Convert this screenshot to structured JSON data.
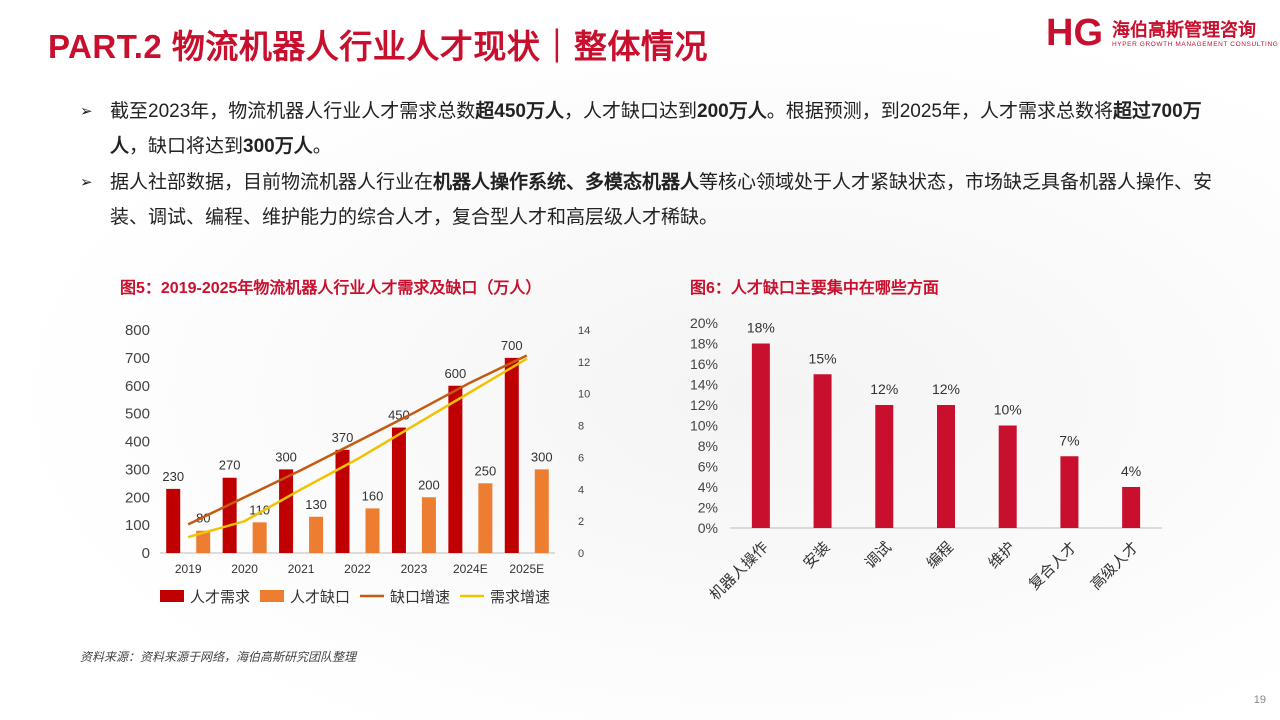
{
  "header": {
    "title": "PART.2 物流机器人行业人才现状｜整体情况",
    "logo_cn": "海伯高斯管理咨询",
    "logo_en": "HYPER GROWTH MANAGEMENT CONSULTING",
    "logo_mark": "HG"
  },
  "bullets": [
    {
      "runs": [
        {
          "t": "截至2023年，物流机器人行业人才需求总数",
          "b": false
        },
        {
          "t": "超450万人",
          "b": true
        },
        {
          "t": "，人才缺口达到",
          "b": false
        },
        {
          "t": "200万人",
          "b": true
        },
        {
          "t": "。根据预测，到2025年，人才需求总数将",
          "b": false
        },
        {
          "t": "超过700万人",
          "b": true
        },
        {
          "t": "，缺口将达到",
          "b": false
        },
        {
          "t": "300万人",
          "b": true
        },
        {
          "t": "。",
          "b": false
        }
      ]
    },
    {
      "runs": [
        {
          "t": "据人社部数据，目前物流机器人行业在",
          "b": false
        },
        {
          "t": "机器人操作系统、多模态机器人",
          "b": true
        },
        {
          "t": "等核心领域处于人才紧缺状态，市场缺乏具备机器人操作、安装、调试、编程、维护能力的综合人才，复合型人才和高层级人才稀缺。",
          "b": false
        }
      ]
    }
  ],
  "chart_data": [
    {
      "type": "bar",
      "title": "图5：2019-2025年物流机器人行业人才需求及缺口（万人）",
      "categories": [
        "2019",
        "2020",
        "2021",
        "2022",
        "2023",
        "2024E",
        "2025E"
      ],
      "series": [
        {
          "name": "人才需求",
          "kind": "bar",
          "axis": "left",
          "color": "#c00000",
          "values": [
            230,
            270,
            300,
            370,
            450,
            600,
            700
          ]
        },
        {
          "name": "人才缺口",
          "kind": "bar",
          "axis": "left",
          "color": "#ed7d31",
          "values": [
            80,
            110,
            130,
            160,
            200,
            250,
            300
          ]
        },
        {
          "name": "缺口增速",
          "kind": "line",
          "axis": "right",
          "color": "#c55a11",
          "values": [
            1.8,
            3.5,
            5.2,
            7.0,
            8.8,
            10.7,
            12.4
          ]
        },
        {
          "name": "需求增速",
          "kind": "line",
          "axis": "right",
          "color": "#f2c200",
          "values": [
            1.0,
            2.0,
            4.0,
            5.9,
            8.0,
            10.1,
            12.2
          ]
        }
      ],
      "ylim_left": [
        0,
        800
      ],
      "yticks_left": [
        0,
        100,
        200,
        300,
        400,
        500,
        600,
        700,
        800
      ],
      "ylim_right": [
        0,
        14
      ],
      "yticks_right": [
        0,
        2,
        4,
        6,
        8,
        10,
        12,
        14
      ],
      "grid": false,
      "legend": "bottom"
    },
    {
      "type": "bar",
      "title": "图6：人才缺口主要集中在哪些方面",
      "categories": [
        "机器人操作",
        "安装",
        "调试",
        "编程",
        "维护",
        "复合人才",
        "高级人才"
      ],
      "values": [
        18,
        15,
        12,
        12,
        10,
        7,
        4
      ],
      "labels": [
        "18%",
        "15%",
        "12%",
        "12%",
        "10%",
        "7%",
        "4%"
      ],
      "ylim": [
        0,
        20
      ],
      "yticks": [
        "0%",
        "2%",
        "4%",
        "6%",
        "8%",
        "10%",
        "12%",
        "14%",
        "16%",
        "18%",
        "20%"
      ],
      "color": "#c8102e",
      "grid": false
    }
  ],
  "footer": {
    "source": "资料来源：资料来源于网络，海伯高斯研究团队整理",
    "page": "19"
  }
}
